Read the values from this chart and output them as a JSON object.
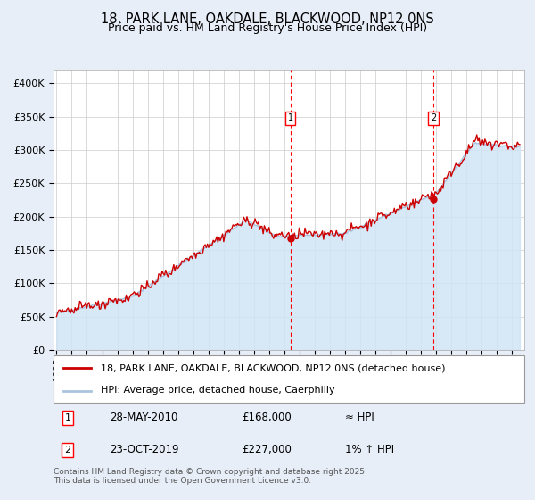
{
  "title": "18, PARK LANE, OAKDALE, BLACKWOOD, NP12 0NS",
  "subtitle": "Price paid vs. HM Land Registry's House Price Index (HPI)",
  "ylabel_ticks": [
    "£0",
    "£50K",
    "£100K",
    "£150K",
    "£200K",
    "£250K",
    "£300K",
    "£350K",
    "£400K"
  ],
  "ytick_values": [
    0,
    50000,
    100000,
    150000,
    200000,
    250000,
    300000,
    350000,
    400000
  ],
  "ylim": [
    0,
    420000
  ],
  "xlim_start": 1994.8,
  "xlim_end": 2025.8,
  "hpi_color": "#aac4e0",
  "hpi_fill_color": "#d0e4f5",
  "price_color": "#cc0000",
  "marker1_date": 2010.41,
  "marker2_date": 2019.81,
  "marker1_price": 168000,
  "marker2_price": 227000,
  "legend_line1": "18, PARK LANE, OAKDALE, BLACKWOOD, NP12 0NS (detached house)",
  "legend_line2": "HPI: Average price, detached house, Caerphilly",
  "annotation1_label": "1",
  "annotation1_date": "28-MAY-2010",
  "annotation1_price": "£168,000",
  "annotation1_hpi": "≈ HPI",
  "annotation2_label": "2",
  "annotation2_date": "23-OCT-2019",
  "annotation2_price": "£227,000",
  "annotation2_hpi": "1% ↑ HPI",
  "footer": "Contains HM Land Registry data © Crown copyright and database right 2025.\nThis data is licensed under the Open Government Licence v3.0.",
  "background_color": "#e8eef8",
  "plot_bg_color": "#ffffff"
}
